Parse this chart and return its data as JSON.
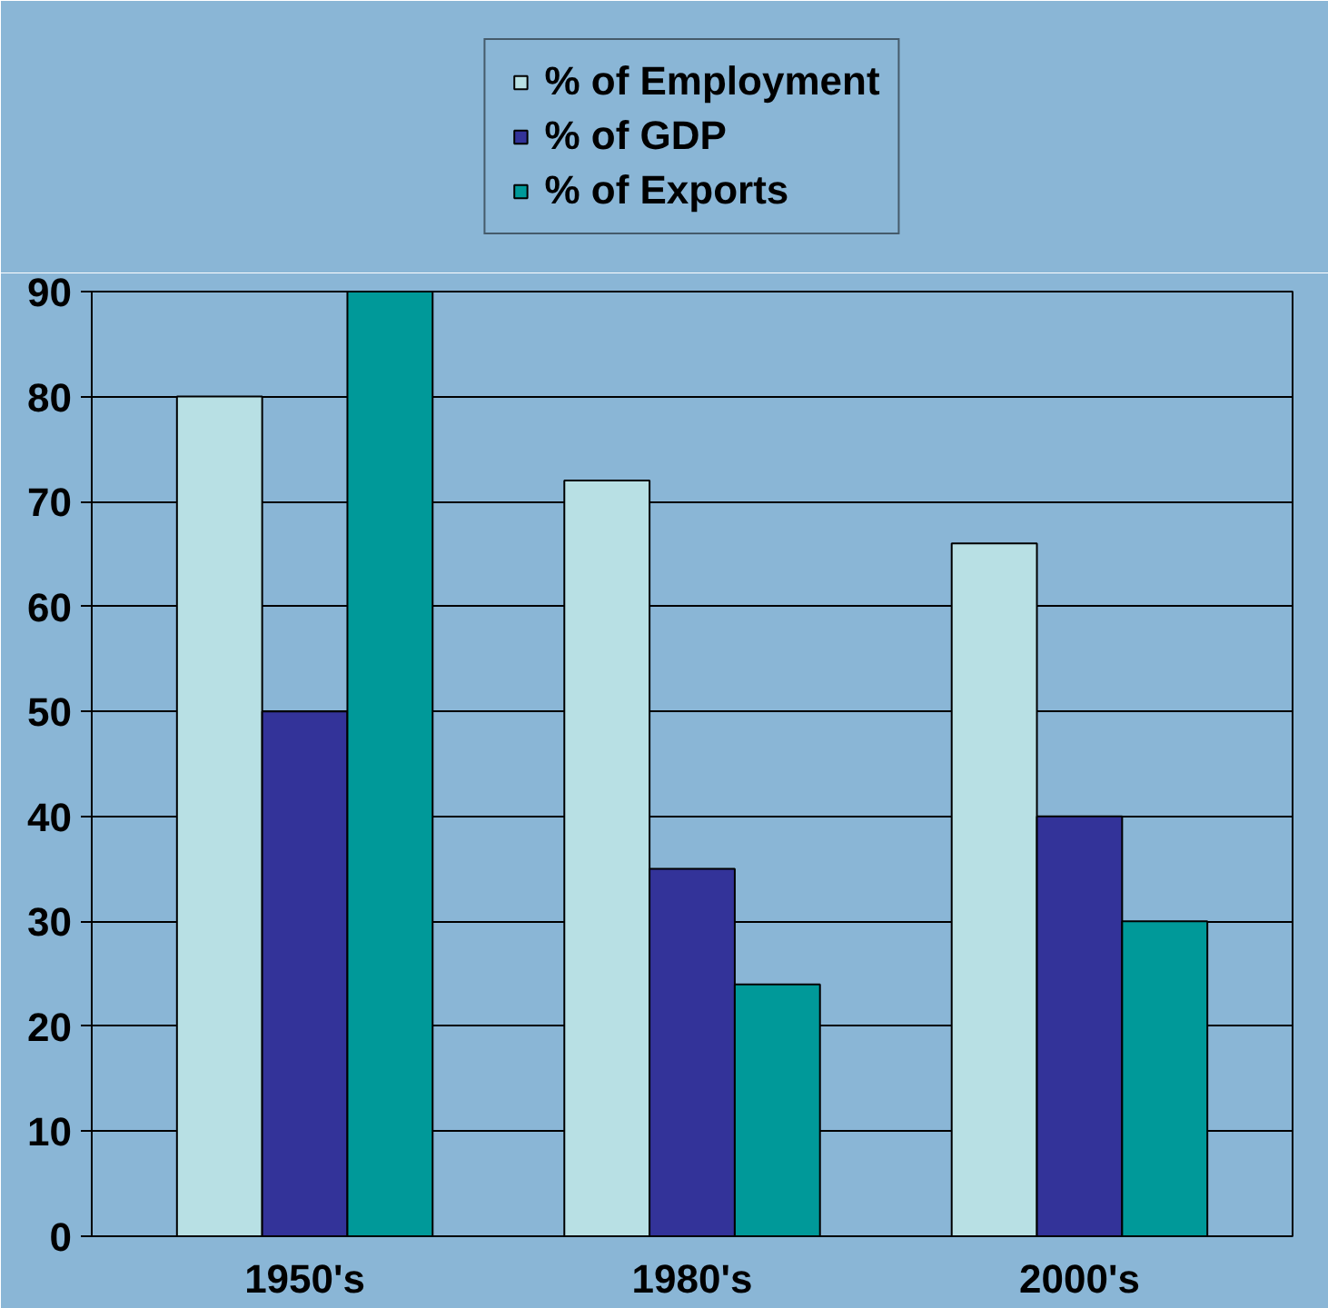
{
  "chart_data": {
    "type": "bar",
    "categories": [
      "1950's",
      "1980's",
      "2000's"
    ],
    "series": [
      {
        "name": "% of Employment",
        "color": "#b8e0e4",
        "values": [
          80,
          72,
          66
        ]
      },
      {
        "name": "% of GDP",
        "color": "#333399",
        "values": [
          50,
          35,
          40
        ]
      },
      {
        "name": "% of Exports",
        "color": "#009999",
        "values": [
          90,
          24,
          30
        ]
      }
    ],
    "ylim": [
      0,
      90
    ],
    "yticks": [
      0,
      10,
      20,
      30,
      40,
      50,
      60,
      70,
      80,
      90
    ],
    "grid": "y",
    "legend": "top"
  }
}
